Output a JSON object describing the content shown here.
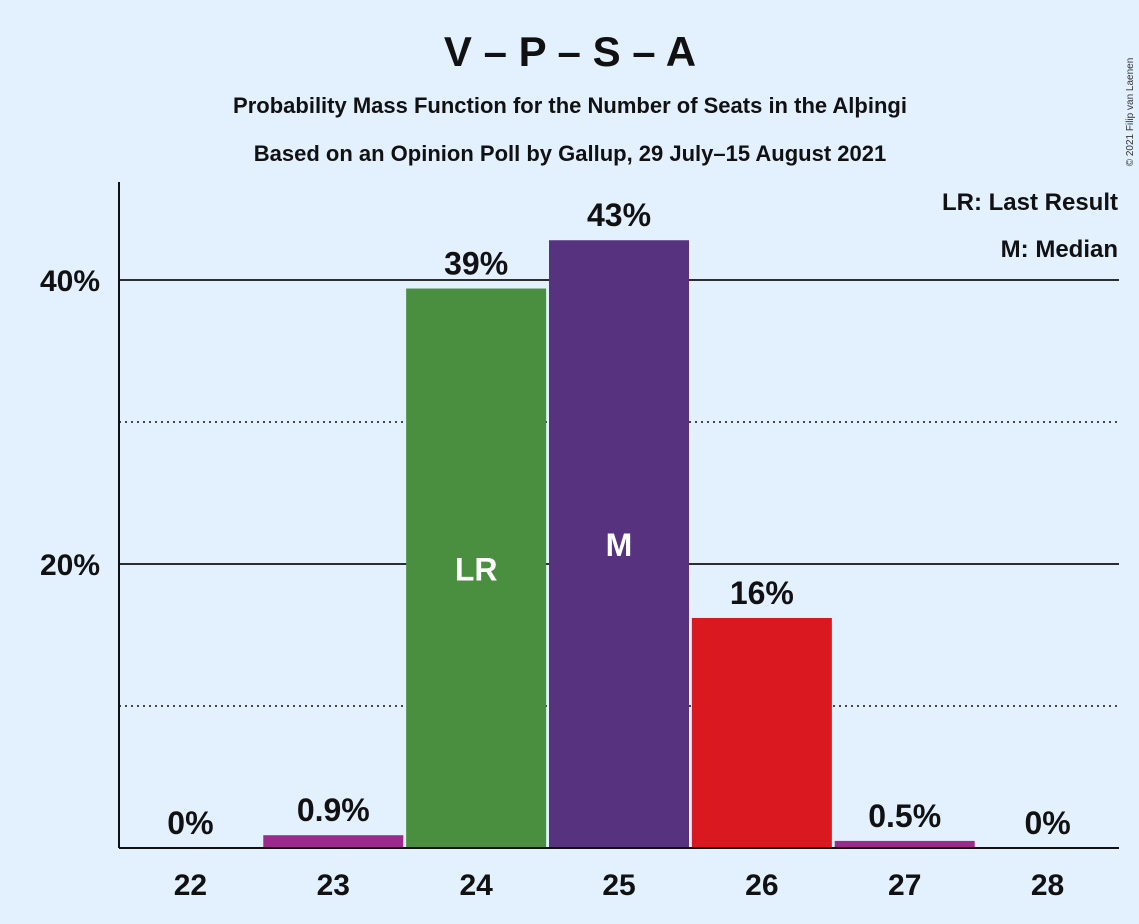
{
  "title": "V – P – S – A",
  "subtitle_line1": "Probability Mass Function for the Number of Seats in the Alþingi",
  "subtitle_line2": "Based on an Opinion Poll by Gallup, 29 July–15 August 2021",
  "copyright": "© 2021 Filip van Laenen",
  "legend": {
    "last_result": "LR: Last Result",
    "median": "M: Median"
  },
  "chart_data": {
    "type": "bar",
    "categories": [
      "22",
      "23",
      "24",
      "25",
      "26",
      "27",
      "28"
    ],
    "values": [
      0,
      0.9,
      39.4,
      42.8,
      16.2,
      0.5,
      0
    ],
    "value_labels": [
      "0%",
      "0.9%",
      "39%",
      "43%",
      "16%",
      "0.5%",
      "0%"
    ],
    "bar_colors": [
      "#9c2a8c",
      "#9c2a8c",
      "#4a8f40",
      "#56327f",
      "#d9191f",
      "#9c2a8c",
      "#9c2a8c"
    ],
    "bar_markers": [
      "",
      "",
      "LR",
      "M",
      "",
      "",
      ""
    ],
    "ylim": [
      0,
      47
    ],
    "yticks_major": [
      20,
      40
    ],
    "ytick_labels": [
      "20%",
      "40%"
    ],
    "yticks_minor": [
      10,
      30
    ],
    "grid": true,
    "legend_position": "top-right"
  }
}
